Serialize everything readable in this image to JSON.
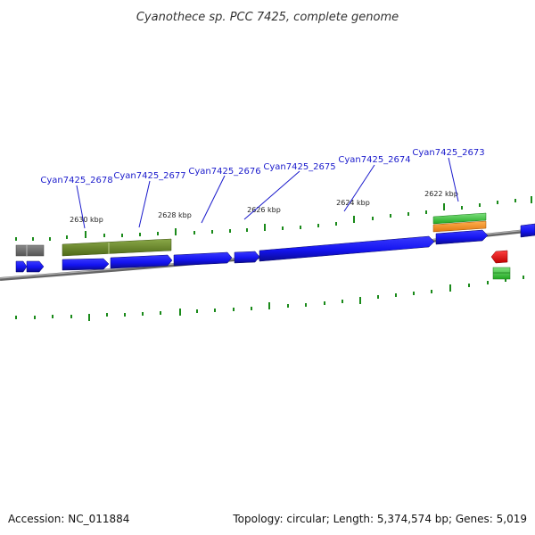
{
  "title": "Cyanothece sp. PCC 7425, complete genome",
  "footer": {
    "accession": "Accession: NC_011884",
    "summary": "Topology: circular; Length: 5,374,574 bp; Genes: 5,019"
  },
  "gene_labels": [
    "Cyan7425_2678",
    "Cyan7425_2677",
    "Cyan7425_2676",
    "Cyan7425_2675",
    "Cyan7425_2674",
    "Cyan7425_2673"
  ],
  "kbp_labels": [
    "2630 kbp",
    "2628 kbp",
    "2626 kbp",
    "2624 kbp",
    "2622 kbp"
  ],
  "colors": {
    "cds": "#1414f0",
    "cds_dark": "#0a0a90",
    "olive": "#6b8a2a",
    "gray": "#6a6a6a",
    "green": "#3cc83c",
    "orange": "#f08a1e",
    "red": "#e01010",
    "backbone": "#8a8a8a",
    "tick": "#1a8a1a",
    "leader": "#1a1acc"
  }
}
